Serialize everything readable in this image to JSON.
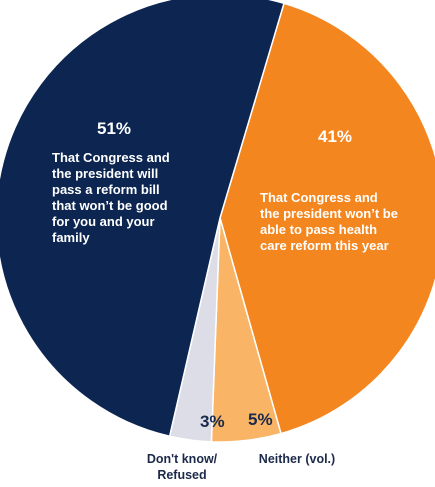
{
  "chart_data": {
    "type": "pie",
    "title": "",
    "slices": [
      {
        "value": 51,
        "label": "51%",
        "description": "That Congress and\nthe president will\npass a reform bill\nthat won’t be good\nfor you and your\nfamily",
        "color": "#0c2551"
      },
      {
        "value": 41,
        "label": "41%",
        "description": "That Congress and\nthe president won’t be\nable to pass health\ncare reform this year",
        "color": "#f4861f"
      },
      {
        "value": 5,
        "label": "5%",
        "description": "Neither (vol.)",
        "color": "#f9b465"
      },
      {
        "value": 3,
        "label": "3%",
        "description": "Don't know/\nRefused",
        "color": "#dcdde6"
      }
    ]
  }
}
